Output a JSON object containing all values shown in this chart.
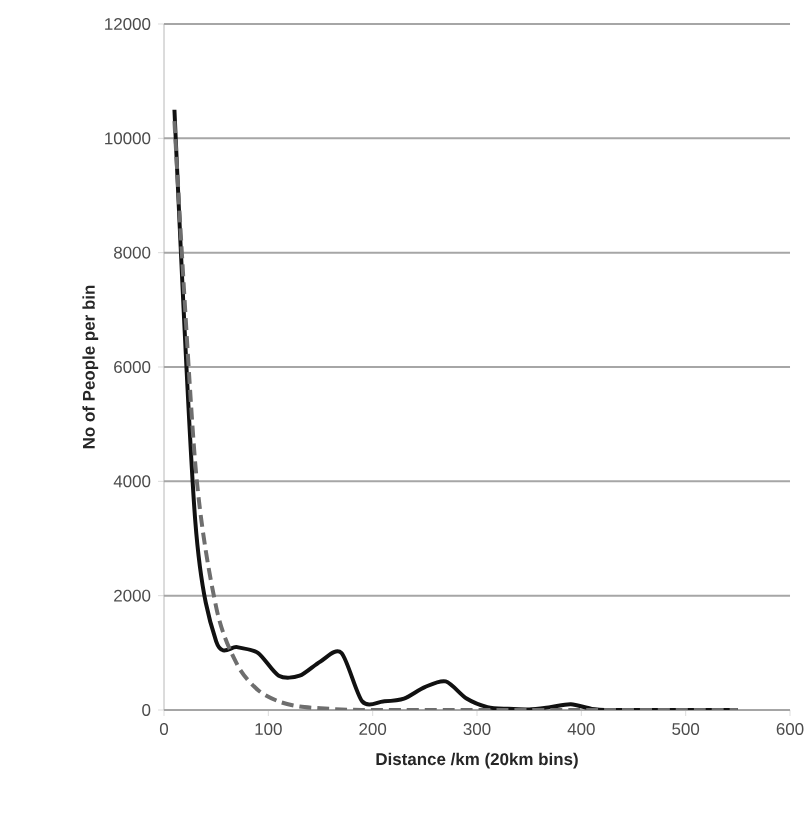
{
  "chart_data": {
    "type": "line",
    "xlabel": "Distance /km (20km bins)",
    "ylabel": "No of People per bin",
    "x": [
      10,
      30,
      50,
      70,
      90,
      110,
      130,
      150,
      170,
      190,
      210,
      230,
      250,
      270,
      290,
      310,
      330,
      350,
      370,
      390,
      410,
      430,
      450,
      470,
      490,
      510,
      530,
      550
    ],
    "series": [
      {
        "color": "#111111",
        "line_style": "solid",
        "values": [
          10500,
          3300,
          1200,
          1100,
          1000,
          600,
          600,
          850,
          1000,
          150,
          150,
          200,
          400,
          500,
          200,
          50,
          20,
          10,
          50,
          100,
          20,
          0,
          0,
          0,
          0,
          0,
          0,
          0
        ]
      },
      {
        "color": "#6e6e6e",
        "line_style": "dashed",
        "values": [
          10300,
          4300,
          1800,
          800,
          350,
          150,
          60,
          30,
          10,
          0,
          0,
          0,
          0,
          0,
          0,
          0,
          0,
          0,
          0,
          0,
          0,
          0,
          0,
          0,
          0,
          0,
          0,
          0
        ]
      }
    ],
    "xlim": [
      0,
      600
    ],
    "xticks": [
      0,
      100,
      200,
      300,
      400,
      500,
      600
    ],
    "ylim": [
      0,
      12000
    ],
    "yticks": [
      0,
      2000,
      4000,
      6000,
      8000,
      10000,
      12000
    ],
    "grid": "y",
    "marker": "none"
  }
}
